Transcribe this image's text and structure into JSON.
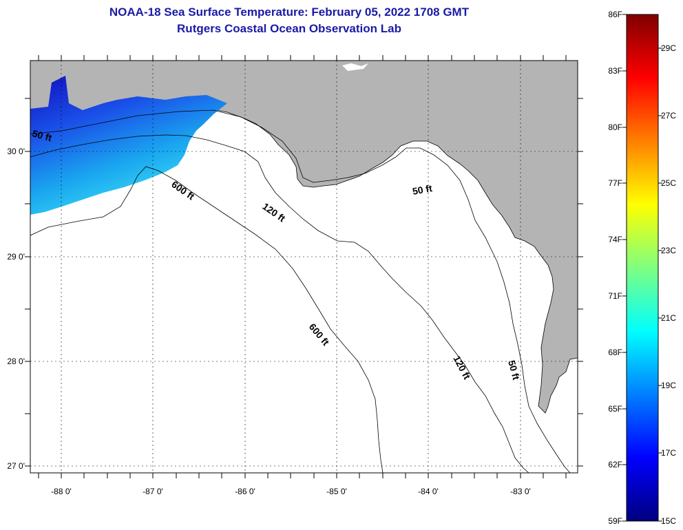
{
  "header": {
    "title": "NOAA-18 Sea Surface Temperature:  February 05, 2022 1708 GMT",
    "subtitle": "Rutgers Coastal Ocean Observation Lab"
  },
  "map": {
    "lat_labels": [
      "30 0'",
      "29 0'",
      "28 0'",
      "27 0'"
    ],
    "lon_labels": [
      "-88 0'",
      "-87 0'",
      "-86 0'",
      "-85 0'",
      "-84 0'",
      "-83 0'"
    ],
    "contour_labels": [
      "50 ft",
      "600 ft",
      "120 ft",
      "50 ft",
      "600 ft",
      "120 ft",
      "50 ft"
    ],
    "colors": {
      "land": "#b4b4b4",
      "ocean": "#ffffff",
      "contour": "#000000"
    }
  },
  "colorbar": {
    "f_labels": [
      "86F",
      "83F",
      "80F",
      "77F",
      "74F",
      "71F",
      "68F",
      "65F",
      "62F",
      "59F"
    ],
    "c_labels": [
      "29C",
      "27C",
      "25C",
      "23C",
      "21C",
      "19C",
      "17C",
      "15C"
    ],
    "stops": [
      "#00007f",
      "#0000ff",
      "#007fff",
      "#00ffff",
      "#7fff7f",
      "#ffff00",
      "#ff7f00",
      "#ff0000",
      "#7f0000"
    ]
  }
}
